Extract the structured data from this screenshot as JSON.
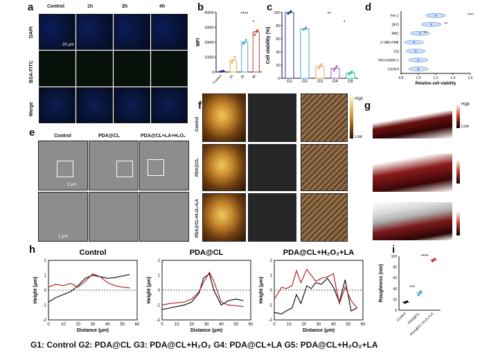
{
  "panels": {
    "a": "a",
    "b": "b",
    "c": "c",
    "d": "d",
    "e": "e",
    "f": "f",
    "g": "g",
    "h": "h",
    "i": "i"
  },
  "panel_a": {
    "columns": [
      "Control",
      "1h",
      "2h",
      "4h"
    ],
    "rows": [
      "DAPI",
      "BSA-FITC",
      "Merge"
    ],
    "scale_bar": "20 μm"
  },
  "panel_e": {
    "columns": [
      "Control",
      "PDA@CL",
      "PDA@CL+LA+H₂O₂"
    ],
    "scale_top": "2 μm",
    "scale_bottom": "1 μm"
  },
  "panel_f": {
    "rows": [
      "Control",
      "PDA@CL",
      "PDA@CL+H₂O₂+LA"
    ],
    "colorbar_high": "High",
    "colorbar_low": "Low"
  },
  "panel_g": {
    "colorbar_high": "High",
    "colorbar_low": "Low"
  },
  "footer": "G1: Control G2: PDA@CL G3: PDA@CL+H₂O₂ G4: PDA@CL+LA G5: PDA@CL+H₂O₂+LA",
  "chart_data": [
    {
      "id": "b",
      "type": "bar",
      "ylabel": "MFI",
      "categories": [
        "Control",
        "1h",
        "2h",
        "4h"
      ],
      "values": [
        500,
        8000,
        20000,
        27000
      ],
      "points": [
        [
          200,
          500,
          800
        ],
        [
          6500,
          8000,
          10000
        ],
        [
          19000,
          20000,
          21500
        ],
        [
          25000,
          27000,
          28000
        ]
      ],
      "colors": [
        "#1f3b8f",
        "#e8a64a",
        "#4a9fd4",
        "#c0392b"
      ],
      "ylim": [
        0,
        40000
      ],
      "yticks": [
        0,
        10000,
        20000,
        30000,
        40000
      ],
      "annotations": [
        "****",
        "*"
      ]
    },
    {
      "id": "c",
      "type": "bar",
      "ylabel": "Cell viability (%)",
      "categories": [
        "G1",
        "G2",
        "G3",
        "G4",
        "G5"
      ],
      "values": [
        100,
        75,
        18,
        15,
        8
      ],
      "points": [
        [
          98,
          100,
          102
        ],
        [
          74,
          75,
          77
        ],
        [
          15,
          18,
          21
        ],
        [
          12,
          15,
          18
        ],
        [
          6,
          8,
          10
        ]
      ],
      "colors": [
        "#1f3b8f",
        "#4a9fd4",
        "#e8a64a",
        "#9b59b6",
        "#1abc9c"
      ],
      "ylim": [
        0,
        100
      ],
      "yticks": [
        0,
        20,
        40,
        60,
        80,
        100
      ],
      "annotations": [
        "**",
        "*"
      ]
    },
    {
      "id": "d",
      "type": "scatter",
      "xlabel": "Relative cell viability",
      "categories": [
        "Fer-1",
        "DFO",
        "NAC",
        "Z-VAD-FMK",
        "CQ",
        "Necrostatin-1",
        "Control"
      ],
      "values": [
        1.2,
        1.15,
        1.02,
        0.95,
        0.97,
        1.0,
        1.0
      ],
      "xlim": [
        0.8,
        1.6
      ],
      "xticks": [
        0.8,
        1.0,
        1.2,
        1.4,
        1.6
      ],
      "annotations": [
        "****",
        "**",
        "**"
      ],
      "colors": [
        "#5b8fd6"
      ]
    },
    {
      "id": "h1",
      "type": "line",
      "title": "Control",
      "xlabel": "Distance (μm)",
      "ylabel": "Height (μm)",
      "xlim": [
        0,
        60
      ],
      "ylim": [
        -2,
        2
      ],
      "xticks": [
        0,
        10,
        20,
        30,
        40,
        50,
        60
      ],
      "yticks": [
        -2,
        -1,
        0,
        1,
        2
      ],
      "series": [
        {
          "color": "#111111",
          "x": [
            0,
            5,
            10,
            15,
            20,
            25,
            30,
            35,
            40,
            45,
            50,
            55
          ],
          "y": [
            -0.8,
            -0.5,
            -0.3,
            -0.1,
            0.3,
            0.8,
            1.0,
            0.9,
            0.8,
            0.85,
            0.95,
            1.05
          ]
        },
        {
          "color": "#b22222",
          "x": [
            0,
            5,
            10,
            15,
            20,
            25,
            30,
            35,
            40,
            45,
            50,
            55
          ],
          "y": [
            0.2,
            0.4,
            0.3,
            0.45,
            0.2,
            0.6,
            1.1,
            0.9,
            0.5,
            0.3,
            0.2,
            0.15
          ]
        }
      ]
    },
    {
      "id": "h2",
      "type": "line",
      "title": "PDA@CL",
      "xlabel": "Distance (μm)",
      "ylabel": "Height (μm)",
      "xlim": [
        0,
        60
      ],
      "ylim": [
        -2,
        2
      ],
      "xticks": [
        0,
        10,
        20,
        30,
        40,
        50,
        60
      ],
      "yticks": [
        -2,
        -1,
        0,
        1,
        2
      ],
      "series": [
        {
          "color": "#111111",
          "x": [
            0,
            5,
            10,
            15,
            20,
            25,
            28,
            32,
            35,
            40,
            45,
            50,
            55
          ],
          "y": [
            -1.3,
            -1.2,
            -1.1,
            -1.0,
            -0.8,
            -0.2,
            0.8,
            1.1,
            0.0,
            -1.0,
            -0.7,
            -0.6,
            -0.7
          ]
        },
        {
          "color": "#b22222",
          "x": [
            0,
            5,
            10,
            15,
            20,
            25,
            28,
            32,
            35,
            40,
            45,
            50,
            55
          ],
          "y": [
            -1.0,
            -0.9,
            -0.85,
            -0.8,
            -0.6,
            -0.1,
            0.5,
            1.2,
            0.6,
            -0.8,
            -1.0,
            -1.05,
            -1.1
          ]
        }
      ]
    },
    {
      "id": "h3",
      "type": "line",
      "title": "PDA@CL+H₂O₂+LA",
      "xlabel": "Distance (μm)",
      "ylabel": "Height (μm)",
      "xlim": [
        0,
        60
      ],
      "ylim": [
        -2,
        2
      ],
      "xticks": [
        0,
        10,
        20,
        30,
        40,
        50,
        60
      ],
      "yticks": [
        -2,
        -1,
        0,
        1,
        2
      ],
      "series": [
        {
          "color": "#111111",
          "x": [
            0,
            5,
            8,
            12,
            15,
            18,
            22,
            25,
            28,
            32,
            36,
            40,
            44,
            48,
            52,
            56
          ],
          "y": [
            -1.5,
            -1.6,
            -1.4,
            -1.2,
            -0.3,
            -0.9,
            0.3,
            0.1,
            0.5,
            0.4,
            0.8,
            0.2,
            -0.8,
            0.7,
            -1.4,
            -1.2
          ]
        },
        {
          "color": "#b22222",
          "x": [
            0,
            5,
            8,
            12,
            15,
            18,
            22,
            25,
            28,
            32,
            36,
            40,
            44,
            48,
            52,
            56
          ],
          "y": [
            -0.6,
            0.2,
            0.1,
            0.3,
            1.3,
            0.5,
            1.4,
            1.0,
            0.6,
            0.8,
            0.9,
            1.1,
            -0.9,
            0.2,
            -0.7,
            -1.2
          ]
        }
      ]
    },
    {
      "id": "i",
      "type": "scatter",
      "ylabel": "Roughness (nm)",
      "categories": [
        "Control",
        "PDA@CL",
        "PDA@CL+H₂O₂+LA"
      ],
      "values": [
        15,
        32,
        93
      ],
      "points": [
        [
          14,
          15,
          16
        ],
        [
          28,
          32,
          35
        ],
        [
          91,
          93,
          95
        ]
      ],
      "colors": [
        "#111111",
        "#4a9fd4",
        "#c0392b"
      ],
      "ylim": [
        0,
        100
      ],
      "yticks": [
        0,
        20,
        40,
        60,
        80,
        100
      ],
      "annotations": [
        "****",
        "***"
      ]
    }
  ]
}
